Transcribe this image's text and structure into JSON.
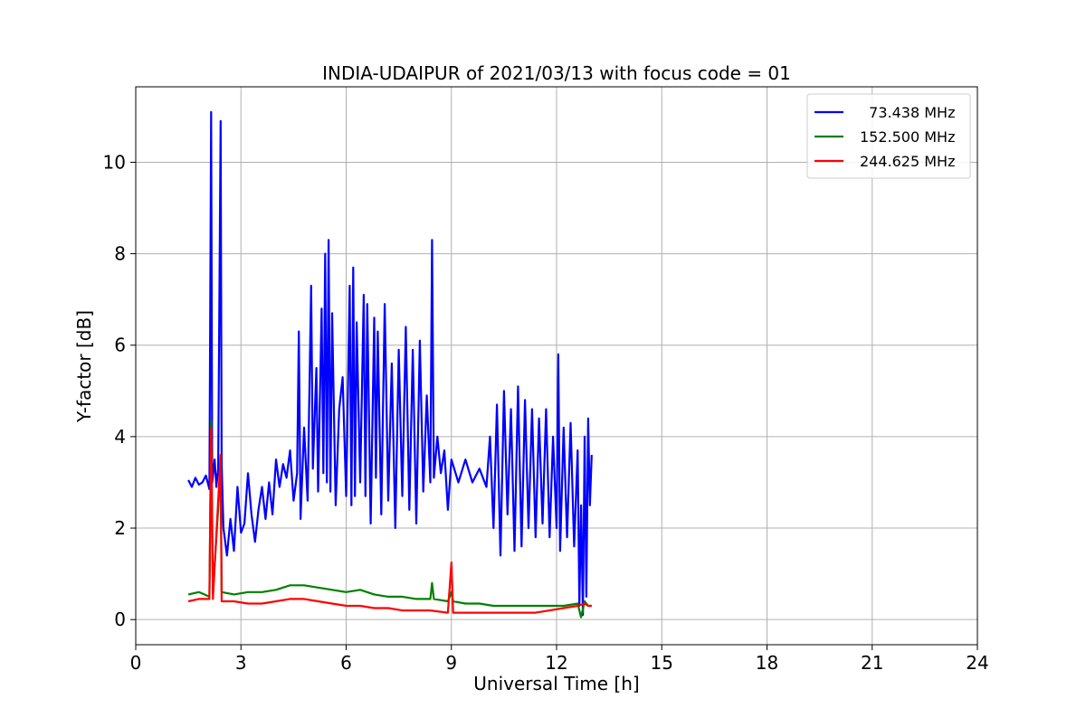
{
  "chart_data": {
    "type": "line",
    "title": "INDIA-UDAIPUR of 2021/03/13 with focus code = 01",
    "xlabel": "Universal Time [h]",
    "ylabel": "Y-factor [dB]",
    "xlim": [
      0,
      24
    ],
    "ylim": [
      -0.55,
      11.65
    ],
    "xticks": [
      0,
      3,
      6,
      9,
      12,
      15,
      18,
      21,
      24
    ],
    "xtick_labels": [
      "0",
      "3",
      "6",
      "9",
      "12",
      "15",
      "18",
      "21",
      "24"
    ],
    "yticks": [
      0,
      2,
      4,
      6,
      8,
      10
    ],
    "ytick_labels": [
      "0",
      "2",
      "4",
      "6",
      "8",
      "10"
    ],
    "grid": true,
    "legend_position": "top-right",
    "series": [
      {
        "name": "  73.438 MHz",
        "color": "#0000ff",
        "points": [
          [
            1.5,
            3.05
          ],
          [
            1.6,
            2.9
          ],
          [
            1.7,
            3.1
          ],
          [
            1.8,
            2.95
          ],
          [
            1.9,
            3.0
          ],
          [
            2.0,
            3.15
          ],
          [
            2.1,
            2.85
          ],
          [
            2.15,
            11.1
          ],
          [
            2.18,
            3.0
          ],
          [
            2.25,
            3.5
          ],
          [
            2.3,
            2.9
          ],
          [
            2.35,
            3.3
          ],
          [
            2.42,
            10.9
          ],
          [
            2.45,
            3.4
          ],
          [
            2.5,
            2.0
          ],
          [
            2.6,
            1.4
          ],
          [
            2.7,
            2.2
          ],
          [
            2.8,
            1.5
          ],
          [
            2.9,
            2.9
          ],
          [
            3.0,
            1.9
          ],
          [
            3.1,
            2.1
          ],
          [
            3.2,
            3.2
          ],
          [
            3.3,
            2.3
          ],
          [
            3.4,
            1.7
          ],
          [
            3.5,
            2.4
          ],
          [
            3.6,
            2.9
          ],
          [
            3.7,
            2.2
          ],
          [
            3.8,
            3.0
          ],
          [
            3.9,
            2.3
          ],
          [
            4.0,
            3.5
          ],
          [
            4.1,
            2.9
          ],
          [
            4.2,
            3.4
          ],
          [
            4.3,
            3.1
          ],
          [
            4.4,
            3.7
          ],
          [
            4.5,
            2.6
          ],
          [
            4.6,
            3.2
          ],
          [
            4.65,
            6.3
          ],
          [
            4.7,
            2.2
          ],
          [
            4.8,
            4.2
          ],
          [
            4.9,
            2.6
          ],
          [
            5.0,
            7.3
          ],
          [
            5.05,
            3.3
          ],
          [
            5.15,
            5.5
          ],
          [
            5.2,
            2.8
          ],
          [
            5.3,
            6.8
          ],
          [
            5.35,
            3.2
          ],
          [
            5.4,
            8.0
          ],
          [
            5.45,
            3.0
          ],
          [
            5.5,
            8.3
          ],
          [
            5.55,
            2.8
          ],
          [
            5.6,
            6.7
          ],
          [
            5.7,
            2.5
          ],
          [
            5.8,
            4.6
          ],
          [
            5.9,
            5.3
          ],
          [
            6.0,
            2.7
          ],
          [
            6.1,
            7.3
          ],
          [
            6.15,
            2.5
          ],
          [
            6.2,
            7.7
          ],
          [
            6.25,
            2.7
          ],
          [
            6.3,
            6.5
          ],
          [
            6.4,
            3.0
          ],
          [
            6.5,
            7.1
          ],
          [
            6.55,
            2.7
          ],
          [
            6.6,
            6.9
          ],
          [
            6.7,
            2.1
          ],
          [
            6.8,
            6.6
          ],
          [
            6.85,
            3.1
          ],
          [
            6.9,
            6.3
          ],
          [
            7.0,
            2.3
          ],
          [
            7.1,
            6.9
          ],
          [
            7.2,
            2.6
          ],
          [
            7.3,
            5.6
          ],
          [
            7.4,
            2.0
          ],
          [
            7.5,
            5.9
          ],
          [
            7.6,
            2.7
          ],
          [
            7.7,
            6.4
          ],
          [
            7.8,
            2.4
          ],
          [
            7.9,
            5.9
          ],
          [
            8.0,
            2.1
          ],
          [
            8.1,
            6.1
          ],
          [
            8.2,
            2.8
          ],
          [
            8.3,
            4.9
          ],
          [
            8.4,
            3.0
          ],
          [
            8.45,
            8.3
          ],
          [
            8.5,
            3.1
          ],
          [
            8.6,
            4.0
          ],
          [
            8.7,
            3.2
          ],
          [
            8.8,
            3.7
          ],
          [
            8.9,
            2.4
          ],
          [
            9.0,
            3.5
          ],
          [
            9.2,
            3.0
          ],
          [
            9.4,
            3.5
          ],
          [
            9.6,
            3.0
          ],
          [
            9.8,
            3.3
          ],
          [
            10.0,
            2.9
          ],
          [
            10.1,
            4.0
          ],
          [
            10.2,
            2.0
          ],
          [
            10.3,
            4.7
          ],
          [
            10.4,
            1.4
          ],
          [
            10.5,
            5.0
          ],
          [
            10.6,
            2.3
          ],
          [
            10.7,
            4.6
          ],
          [
            10.8,
            1.5
          ],
          [
            10.9,
            5.1
          ],
          [
            11.0,
            1.6
          ],
          [
            11.1,
            4.8
          ],
          [
            11.2,
            2.0
          ],
          [
            11.3,
            4.6
          ],
          [
            11.4,
            1.8
          ],
          [
            11.5,
            4.4
          ],
          [
            11.6,
            2.1
          ],
          [
            11.7,
            4.6
          ],
          [
            11.8,
            1.8
          ],
          [
            11.9,
            4.0
          ],
          [
            12.0,
            2.0
          ],
          [
            12.05,
            5.8
          ],
          [
            12.1,
            1.5
          ],
          [
            12.2,
            4.2
          ],
          [
            12.3,
            1.8
          ],
          [
            12.4,
            4.3
          ],
          [
            12.5,
            1.6
          ],
          [
            12.6,
            3.7
          ],
          [
            12.65,
            0.3
          ],
          [
            12.7,
            2.5
          ],
          [
            12.75,
            0.1
          ],
          [
            12.8,
            4.0
          ],
          [
            12.85,
            0.5
          ],
          [
            12.9,
            4.4
          ],
          [
            12.95,
            2.5
          ],
          [
            13.0,
            3.6
          ]
        ]
      },
      {
        "name": "152.500 MHz",
        "color": "#008000",
        "points": [
          [
            1.5,
            0.55
          ],
          [
            1.8,
            0.6
          ],
          [
            2.1,
            0.5
          ],
          [
            2.15,
            4.35
          ],
          [
            2.2,
            0.6
          ],
          [
            2.42,
            3.3
          ],
          [
            2.45,
            0.6
          ],
          [
            2.8,
            0.55
          ],
          [
            3.2,
            0.6
          ],
          [
            3.6,
            0.6
          ],
          [
            4.0,
            0.65
          ],
          [
            4.4,
            0.75
          ],
          [
            4.8,
            0.75
          ],
          [
            5.2,
            0.7
          ],
          [
            5.6,
            0.65
          ],
          [
            6.0,
            0.6
          ],
          [
            6.4,
            0.65
          ],
          [
            6.8,
            0.55
          ],
          [
            7.2,
            0.5
          ],
          [
            7.6,
            0.5
          ],
          [
            8.0,
            0.45
          ],
          [
            8.4,
            0.45
          ],
          [
            8.45,
            0.8
          ],
          [
            8.5,
            0.45
          ],
          [
            8.9,
            0.4
          ],
          [
            9.0,
            0.6
          ],
          [
            9.05,
            0.4
          ],
          [
            9.4,
            0.35
          ],
          [
            9.8,
            0.35
          ],
          [
            10.2,
            0.3
          ],
          [
            10.6,
            0.3
          ],
          [
            11.0,
            0.3
          ],
          [
            11.4,
            0.3
          ],
          [
            11.8,
            0.3
          ],
          [
            12.2,
            0.3
          ],
          [
            12.6,
            0.35
          ],
          [
            12.7,
            0.05
          ],
          [
            12.8,
            0.4
          ],
          [
            12.9,
            0.3
          ],
          [
            13.0,
            0.3
          ]
        ]
      },
      {
        "name": "244.625 MHz",
        "color": "#ff0000",
        "points": [
          [
            1.5,
            0.4
          ],
          [
            1.8,
            0.45
          ],
          [
            2.1,
            0.45
          ],
          [
            2.15,
            4.2
          ],
          [
            2.2,
            0.45
          ],
          [
            2.42,
            3.6
          ],
          [
            2.45,
            0.4
          ],
          [
            2.8,
            0.4
          ],
          [
            3.2,
            0.35
          ],
          [
            3.6,
            0.35
          ],
          [
            4.0,
            0.4
          ],
          [
            4.4,
            0.45
          ],
          [
            4.8,
            0.45
          ],
          [
            5.2,
            0.4
          ],
          [
            5.6,
            0.35
          ],
          [
            6.0,
            0.3
          ],
          [
            6.4,
            0.3
          ],
          [
            6.8,
            0.25
          ],
          [
            7.2,
            0.25
          ],
          [
            7.6,
            0.2
          ],
          [
            8.0,
            0.2
          ],
          [
            8.4,
            0.2
          ],
          [
            8.9,
            0.15
          ],
          [
            9.0,
            1.25
          ],
          [
            9.05,
            0.15
          ],
          [
            9.4,
            0.15
          ],
          [
            9.8,
            0.15
          ],
          [
            10.2,
            0.15
          ],
          [
            10.6,
            0.15
          ],
          [
            11.0,
            0.15
          ],
          [
            11.4,
            0.15
          ],
          [
            11.8,
            0.2
          ],
          [
            12.2,
            0.25
          ],
          [
            12.6,
            0.3
          ],
          [
            12.8,
            0.35
          ],
          [
            12.9,
            0.3
          ],
          [
            13.0,
            0.3
          ]
        ]
      }
    ]
  }
}
